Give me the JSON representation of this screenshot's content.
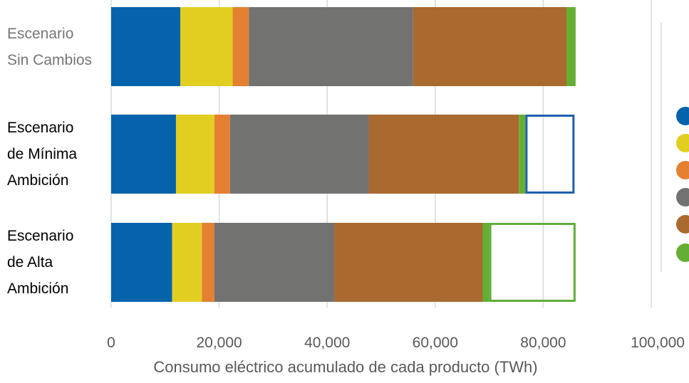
{
  "chart_data": {
    "type": "bar",
    "orientation": "horizontal",
    "stacked": true,
    "title": "",
    "xlabel": "Consumo eléctrico acumulado de cada producto (TWh)",
    "ylabel": "",
    "xlim": [
      0,
      100000
    ],
    "x_ticks": [
      "0",
      "20,000",
      "40,000",
      "60,000",
      "80,000",
      "100,000"
    ],
    "grid": true,
    "categories": [
      "Escenario\nSin Cambios",
      "Escenario\nde Mínima\nAmbición",
      "Escenario\nde Alta\nAmbición"
    ],
    "category_colors": [
      "#767676",
      "#000000",
      "#000000"
    ],
    "series": [
      {
        "color": "#0563AC",
        "values": [
          12800,
          12000,
          11300
        ]
      },
      {
        "color": "#E2CE20",
        "values": [
          9700,
          7100,
          5500
        ]
      },
      {
        "color": "#E57F31",
        "values": [
          3000,
          2900,
          2300
        ]
      },
      {
        "color": "#727270",
        "values": [
          30400,
          25700,
          22200
        ]
      },
      {
        "color": "#A9692F",
        "values": [
          28400,
          27800,
          27500
        ]
      },
      {
        "color": "#65AE34",
        "values": [
          1700,
          1200,
          1200
        ]
      }
    ],
    "savings_outline": {
      "values": [
        null,
        9100,
        16000
      ],
      "colors": [
        null,
        "#1F5FAF",
        "#5FAE3A"
      ]
    },
    "legend_placement": "right (partially cropped)"
  },
  "legend": {
    "icons": [
      {
        "icon": "circle-icon-blue",
        "color": "#0563AC"
      },
      {
        "icon": "circle-icon-yellow",
        "color": "#E2CE20"
      },
      {
        "icon": "circle-icon-orange",
        "color": "#E57F31"
      },
      {
        "icon": "circle-icon-grey",
        "color": "#727270"
      },
      {
        "icon": "circle-icon-brown",
        "color": "#A9692F"
      },
      {
        "icon": "circle-icon-green",
        "color": "#65AE34"
      }
    ]
  }
}
